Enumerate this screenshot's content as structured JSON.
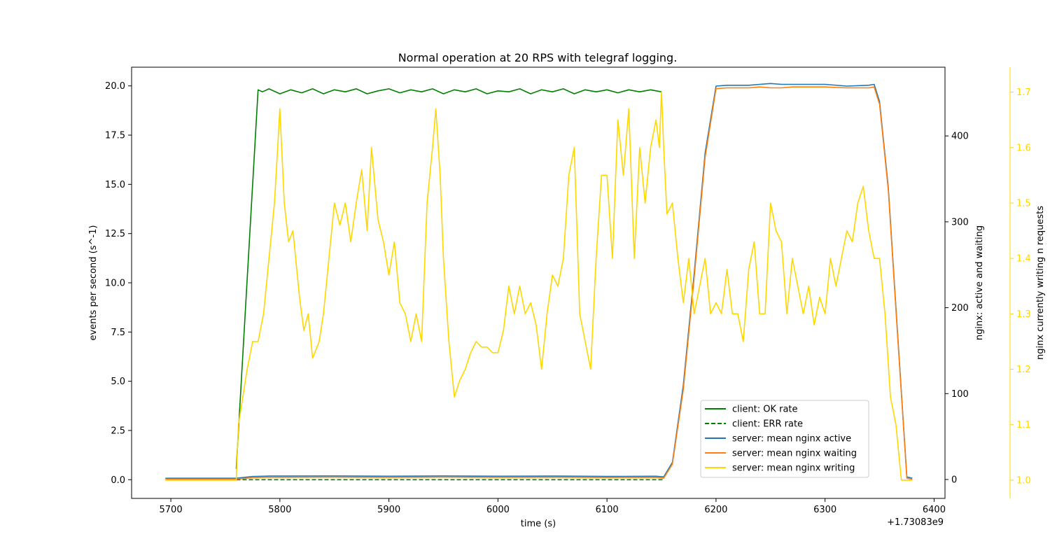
{
  "chart_data": {
    "type": "line",
    "title": "Normal operation at 20 RPS with telegraf logging.",
    "xlabel": "time (s)",
    "x_offset_label": "+1.73083e9",
    "ylabel_left": "events per second (s^-1)",
    "ylabel_right": "nginx: active and waiting",
    "ylabel_right2": "nginx currently writing n requests",
    "xlim": [
      5664,
      6410
    ],
    "x_ticks": [
      5700,
      5800,
      5900,
      6000,
      6100,
      6200,
      6300,
      6400
    ],
    "ylim_left": [
      -0.95,
      20.95
    ],
    "y_ticks_left": [
      0.0,
      2.5,
      5.0,
      7.5,
      10.0,
      12.5,
      15.0,
      17.5,
      20.0
    ],
    "ylim_right": [
      -22,
      480
    ],
    "y_ticks_right": [
      0,
      100,
      200,
      300,
      400
    ],
    "ylim_right2": [
      0.967,
      1.745
    ],
    "y_ticks_right2": [
      1.0,
      1.1,
      1.2,
      1.3,
      1.4,
      1.5,
      1.6,
      1.7
    ],
    "legend_position": "lower-right",
    "grid": false,
    "colors": {
      "ok": "#008000",
      "err": "#008000",
      "active": "#1f77b4",
      "waiting": "#ff7f0e",
      "writing": "#ffd700",
      "right2_axis": "#ffd700"
    },
    "series": [
      {
        "name": "client: OK rate",
        "axis": "left",
        "style": "solid",
        "color": "#008000",
        "points": [
          [
            5760,
            0.55
          ],
          [
            5780,
            19.8
          ],
          [
            5784,
            19.7
          ],
          [
            5790,
            19.85
          ],
          [
            5800,
            19.6
          ],
          [
            5810,
            19.8
          ],
          [
            5820,
            19.65
          ],
          [
            5830,
            19.85
          ],
          [
            5840,
            19.6
          ],
          [
            5850,
            19.8
          ],
          [
            5860,
            19.7
          ],
          [
            5870,
            19.85
          ],
          [
            5880,
            19.6
          ],
          [
            5890,
            19.75
          ],
          [
            5900,
            19.85
          ],
          [
            5910,
            19.65
          ],
          [
            5920,
            19.8
          ],
          [
            5930,
            19.7
          ],
          [
            5940,
            19.85
          ],
          [
            5950,
            19.6
          ],
          [
            5960,
            19.8
          ],
          [
            5970,
            19.7
          ],
          [
            5980,
            19.85
          ],
          [
            5990,
            19.6
          ],
          [
            6000,
            19.75
          ],
          [
            6010,
            19.7
          ],
          [
            6020,
            19.85
          ],
          [
            6030,
            19.6
          ],
          [
            6040,
            19.8
          ],
          [
            6050,
            19.7
          ],
          [
            6060,
            19.85
          ],
          [
            6070,
            19.6
          ],
          [
            6080,
            19.8
          ],
          [
            6090,
            19.7
          ],
          [
            6100,
            19.8
          ],
          [
            6110,
            19.65
          ],
          [
            6120,
            19.8
          ],
          [
            6130,
            19.7
          ],
          [
            6140,
            19.8
          ],
          [
            6150,
            19.7
          ]
        ]
      },
      {
        "name": "client: ERR rate",
        "axis": "left",
        "style": "dashed",
        "color": "#008000",
        "points": [
          [
            5760,
            0.0
          ],
          [
            6152,
            0.0
          ]
        ]
      },
      {
        "name": "server: mean nginx active",
        "axis": "right",
        "style": "solid",
        "color": "#1f77b4",
        "points": [
          [
            5695,
            1.5
          ],
          [
            5760,
            1.5
          ],
          [
            5775,
            3.5
          ],
          [
            5790,
            4.0
          ],
          [
            5850,
            4.2
          ],
          [
            5900,
            3.8
          ],
          [
            5950,
            4.2
          ],
          [
            6000,
            3.8
          ],
          [
            6050,
            4.0
          ],
          [
            6100,
            3.6
          ],
          [
            6145,
            3.8
          ],
          [
            6152,
            3.0
          ],
          [
            6160,
            20
          ],
          [
            6170,
            110
          ],
          [
            6180,
            240
          ],
          [
            6190,
            380
          ],
          [
            6200,
            458
          ],
          [
            6210,
            459
          ],
          [
            6230,
            459
          ],
          [
            6240,
            460
          ],
          [
            6250,
            461
          ],
          [
            6260,
            460
          ],
          [
            6270,
            460
          ],
          [
            6300,
            460
          ],
          [
            6320,
            458
          ],
          [
            6340,
            459
          ],
          [
            6345,
            460
          ],
          [
            6350,
            440
          ],
          [
            6358,
            340
          ],
          [
            6366,
            180
          ],
          [
            6375,
            3
          ],
          [
            6380,
            1.5
          ]
        ]
      },
      {
        "name": "server: mean nginx waiting",
        "axis": "right",
        "style": "solid",
        "color": "#ff7f0e",
        "points": [
          [
            5695,
            0.5
          ],
          [
            5760,
            0.5
          ],
          [
            5775,
            2.0
          ],
          [
            5790,
            2.5
          ],
          [
            5850,
            2.8
          ],
          [
            5900,
            2.4
          ],
          [
            5950,
            2.8
          ],
          [
            6000,
            2.4
          ],
          [
            6050,
            2.6
          ],
          [
            6100,
            2.2
          ],
          [
            6145,
            2.4
          ],
          [
            6152,
            1.5
          ],
          [
            6160,
            18
          ],
          [
            6170,
            105
          ],
          [
            6180,
            235
          ],
          [
            6190,
            375
          ],
          [
            6200,
            455
          ],
          [
            6210,
            456
          ],
          [
            6230,
            456
          ],
          [
            6240,
            457
          ],
          [
            6250,
            456
          ],
          [
            6260,
            456
          ],
          [
            6270,
            457
          ],
          [
            6300,
            457
          ],
          [
            6320,
            456
          ],
          [
            6340,
            456
          ],
          [
            6345,
            457
          ],
          [
            6350,
            437
          ],
          [
            6358,
            337
          ],
          [
            6366,
            177
          ],
          [
            6375,
            1.5
          ],
          [
            6380,
            0.5
          ]
        ]
      },
      {
        "name": "server: mean nginx writing",
        "axis": "right2",
        "style": "solid",
        "color": "#ffd700",
        "points": [
          [
            5695,
            1.0
          ],
          [
            5760,
            1.0
          ],
          [
            5762,
            1.1
          ],
          [
            5766,
            1.15
          ],
          [
            5770,
            1.2
          ],
          [
            5775,
            1.25
          ],
          [
            5780,
            1.25
          ],
          [
            5785,
            1.3
          ],
          [
            5790,
            1.4
          ],
          [
            5795,
            1.5
          ],
          [
            5798,
            1.6
          ],
          [
            5800,
            1.67
          ],
          [
            5804,
            1.5
          ],
          [
            5808,
            1.43
          ],
          [
            5812,
            1.45
          ],
          [
            5818,
            1.33
          ],
          [
            5822,
            1.27
          ],
          [
            5826,
            1.3
          ],
          [
            5830,
            1.22
          ],
          [
            5836,
            1.25
          ],
          [
            5840,
            1.3
          ],
          [
            5845,
            1.4
          ],
          [
            5850,
            1.5
          ],
          [
            5855,
            1.46
          ],
          [
            5860,
            1.5
          ],
          [
            5865,
            1.43
          ],
          [
            5870,
            1.5
          ],
          [
            5875,
            1.56
          ],
          [
            5880,
            1.45
          ],
          [
            5884,
            1.6
          ],
          [
            5890,
            1.47
          ],
          [
            5895,
            1.43
          ],
          [
            5900,
            1.37
          ],
          [
            5905,
            1.43
          ],
          [
            5910,
            1.32
          ],
          [
            5915,
            1.3
          ],
          [
            5920,
            1.25
          ],
          [
            5925,
            1.3
          ],
          [
            5930,
            1.25
          ],
          [
            5935,
            1.5
          ],
          [
            5940,
            1.6
          ],
          [
            5943,
            1.67
          ],
          [
            5947,
            1.55
          ],
          [
            5950,
            1.4
          ],
          [
            5955,
            1.25
          ],
          [
            5960,
            1.15
          ],
          [
            5965,
            1.18
          ],
          [
            5970,
            1.2
          ],
          [
            5975,
            1.23
          ],
          [
            5980,
            1.25
          ],
          [
            5985,
            1.24
          ],
          [
            5990,
            1.24
          ],
          [
            5995,
            1.23
          ],
          [
            6000,
            1.23
          ],
          [
            6005,
            1.27
          ],
          [
            6010,
            1.35
          ],
          [
            6015,
            1.3
          ],
          [
            6020,
            1.35
          ],
          [
            6025,
            1.3
          ],
          [
            6030,
            1.32
          ],
          [
            6035,
            1.28
          ],
          [
            6040,
            1.2
          ],
          [
            6045,
            1.3
          ],
          [
            6050,
            1.37
          ],
          [
            6055,
            1.35
          ],
          [
            6060,
            1.4
          ],
          [
            6065,
            1.55
          ],
          [
            6070,
            1.6
          ],
          [
            6075,
            1.3
          ],
          [
            6080,
            1.25
          ],
          [
            6085,
            1.2
          ],
          [
            6090,
            1.4
          ],
          [
            6095,
            1.55
          ],
          [
            6100,
            1.55
          ],
          [
            6105,
            1.4
          ],
          [
            6110,
            1.65
          ],
          [
            6115,
            1.55
          ],
          [
            6120,
            1.67
          ],
          [
            6125,
            1.4
          ],
          [
            6130,
            1.6
          ],
          [
            6135,
            1.5
          ],
          [
            6140,
            1.6
          ],
          [
            6145,
            1.65
          ],
          [
            6148,
            1.6
          ],
          [
            6150,
            1.7
          ],
          [
            6152,
            1.6
          ],
          [
            6155,
            1.48
          ],
          [
            6160,
            1.5
          ],
          [
            6165,
            1.4
          ],
          [
            6170,
            1.32
          ],
          [
            6175,
            1.4
          ],
          [
            6180,
            1.3
          ],
          [
            6185,
            1.35
          ],
          [
            6190,
            1.4
          ],
          [
            6195,
            1.3
          ],
          [
            6200,
            1.32
          ],
          [
            6205,
            1.3
          ],
          [
            6210,
            1.38
          ],
          [
            6215,
            1.3
          ],
          [
            6220,
            1.3
          ],
          [
            6225,
            1.25
          ],
          [
            6230,
            1.38
          ],
          [
            6235,
            1.43
          ],
          [
            6240,
            1.3
          ],
          [
            6245,
            1.3
          ],
          [
            6250,
            1.5
          ],
          [
            6255,
            1.45
          ],
          [
            6260,
            1.43
          ],
          [
            6265,
            1.3
          ],
          [
            6270,
            1.4
          ],
          [
            6275,
            1.35
          ],
          [
            6280,
            1.3
          ],
          [
            6285,
            1.35
          ],
          [
            6290,
            1.28
          ],
          [
            6295,
            1.33
          ],
          [
            6300,
            1.3
          ],
          [
            6305,
            1.4
          ],
          [
            6310,
            1.35
          ],
          [
            6315,
            1.4
          ],
          [
            6320,
            1.45
          ],
          [
            6325,
            1.43
          ],
          [
            6330,
            1.5
          ],
          [
            6335,
            1.53
          ],
          [
            6340,
            1.45
          ],
          [
            6345,
            1.4
          ],
          [
            6350,
            1.4
          ],
          [
            6355,
            1.3
          ],
          [
            6360,
            1.15
          ],
          [
            6365,
            1.1
          ],
          [
            6370,
            1.0
          ],
          [
            6380,
            1.0
          ]
        ]
      }
    ]
  }
}
